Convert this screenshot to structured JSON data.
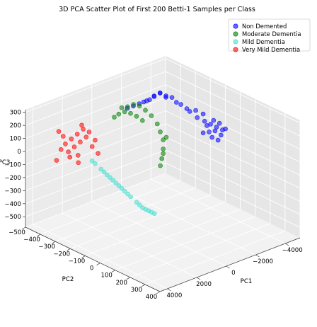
{
  "chart_data": {
    "type": "scatter",
    "projection": "3d",
    "title": "3D PCA Scatter Plot of First 200 Betti-1 Samples per Class",
    "xlabel": "PC1",
    "ylabel": "PC2",
    "zlabel": "PC3",
    "grid": true,
    "legend_position": "top-right",
    "xlim": [
      -5000,
      4500
    ],
    "ylim": [
      -500,
      400
    ],
    "zlim": [
      -580,
      320
    ],
    "x_ticks": [
      "4000",
      "2000",
      "0",
      "−2000",
      "−4000"
    ],
    "y_ticks": [
      "−500",
      "−400",
      "−300",
      "−200",
      "−100",
      "0",
      "100",
      "200",
      "300",
      "400"
    ],
    "z_ticks": [
      "300",
      "200",
      "100",
      "0",
      "−100",
      "−200",
      "−300",
      "−400",
      "−500"
    ],
    "series": [
      {
        "name": "Non Demented",
        "color": "#0000ff",
        "points": [
          [
            -2400,
            -320,
            220
          ],
          [
            -2200,
            -350,
            180
          ],
          [
            -2600,
            -300,
            250
          ],
          [
            -2000,
            -380,
            150
          ],
          [
            -2800,
            -280,
            230
          ],
          [
            -3000,
            -300,
            200
          ],
          [
            -3200,
            -250,
            180
          ],
          [
            -3400,
            -200,
            150
          ],
          [
            -3600,
            -150,
            100
          ],
          [
            -3800,
            -120,
            80
          ],
          [
            -4000,
            -100,
            60
          ],
          [
            -4200,
            -80,
            40
          ],
          [
            -4400,
            -60,
            20
          ],
          [
            -3900,
            -140,
            120
          ],
          [
            -3700,
            -170,
            140
          ],
          [
            -3500,
            -190,
            130
          ],
          [
            -4100,
            -90,
            90
          ],
          [
            -4300,
            -70,
            70
          ],
          [
            -4500,
            -50,
            30
          ],
          [
            -3300,
            -230,
            170
          ],
          [
            -3100,
            -270,
            210
          ],
          [
            -2700,
            -310,
            240
          ],
          [
            -2300,
            -340,
            190
          ],
          [
            -1800,
            -400,
            130
          ],
          [
            -1600,
            -420,
            110
          ],
          [
            -2100,
            -360,
            170
          ],
          [
            -2500,
            -330,
            215
          ],
          [
            -3850,
            -110,
            50
          ],
          [
            -4150,
            -85,
            10
          ],
          [
            -4350,
            -65,
            -20
          ],
          [
            -4050,
            -95,
            -40
          ],
          [
            -3750,
            -125,
            -10
          ],
          [
            -3950,
            -105,
            0
          ],
          [
            -4250,
            -75,
            -60
          ]
        ]
      },
      {
        "name": "Moderate Dementia",
        "color": "#008000",
        "points": [
          [
            -600,
            -280,
            260
          ],
          [
            -400,
            -300,
            240
          ],
          [
            -200,
            -320,
            230
          ],
          [
            -800,
            -260,
            250
          ],
          [
            -1000,
            -240,
            220
          ],
          [
            -1200,
            -220,
            180
          ],
          [
            -1400,
            -200,
            120
          ],
          [
            -1500,
            -190,
            60
          ],
          [
            -1600,
            -180,
            0
          ],
          [
            -1500,
            -170,
            -60
          ],
          [
            -1300,
            -160,
            -120
          ],
          [
            -1100,
            -150,
            -160
          ],
          [
            -300,
            -310,
            200
          ],
          [
            -500,
            -290,
            190
          ],
          [
            -700,
            -270,
            170
          ],
          [
            -900,
            -250,
            140
          ],
          [
            -100,
            -330,
            180
          ],
          [
            100,
            -340,
            160
          ],
          [
            -1700,
            -170,
            20
          ],
          [
            -1450,
            -165,
            -90
          ]
        ]
      },
      {
        "name": "Mild Dementia",
        "color": "#40e0d0",
        "points": [
          [
            800,
            -280,
            -260
          ],
          [
            600,
            -260,
            -300
          ],
          [
            400,
            -240,
            -340
          ],
          [
            200,
            -220,
            -380
          ],
          [
            0,
            -200,
            -420
          ],
          [
            -200,
            -180,
            -460
          ],
          [
            -400,
            -160,
            -480
          ],
          [
            -600,
            -140,
            -500
          ],
          [
            1000,
            -300,
            -220
          ],
          [
            1200,
            -320,
            -180
          ],
          [
            1400,
            -340,
            -140
          ],
          [
            300,
            -230,
            -360
          ],
          [
            -100,
            -190,
            -440
          ],
          [
            -500,
            -150,
            -490
          ],
          [
            900,
            -290,
            -240
          ],
          [
            1100,
            -310,
            -200
          ],
          [
            500,
            -250,
            -320
          ],
          [
            -300,
            -170,
            -470
          ],
          [
            700,
            -270,
            -280
          ],
          [
            1500,
            -350,
            -120
          ]
        ]
      },
      {
        "name": "Very Mild Dementia",
        "color": "#ff0000",
        "points": [
          [
            1800,
            -380,
            120
          ],
          [
            2000,
            -400,
            80
          ],
          [
            2200,
            -420,
            40
          ],
          [
            1600,
            -360,
            100
          ],
          [
            1900,
            -390,
            20
          ],
          [
            2100,
            -410,
            -20
          ],
          [
            2300,
            -430,
            -60
          ],
          [
            1700,
            -370,
            60
          ],
          [
            2400,
            -440,
            0
          ],
          [
            2600,
            -450,
            -40
          ],
          [
            1500,
            -350,
            -10
          ],
          [
            2000,
            -395,
            -80
          ],
          [
            2500,
            -445,
            60
          ],
          [
            1850,
            -385,
            150
          ],
          [
            2250,
            -425,
            -100
          ],
          [
            1400,
            -340,
            40
          ],
          [
            2700,
            -455,
            100
          ],
          [
            2800,
            -460,
            -120
          ],
          [
            1300,
            -330,
            -60
          ],
          [
            1950,
            -398,
            -140
          ]
        ]
      }
    ]
  }
}
